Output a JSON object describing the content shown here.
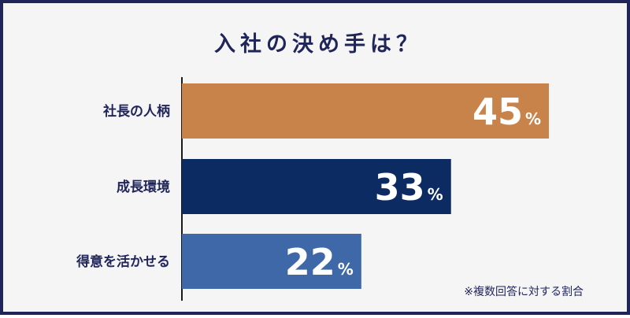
{
  "chart_data": {
    "type": "bar",
    "orientation": "horizontal",
    "title": "入社の決め手は？",
    "categories": [
      "社長の人柄",
      "成長環境",
      "得意を活かせる"
    ],
    "values": [
      45,
      33,
      22
    ],
    "unit": "%",
    "colors": [
      "#c8834a",
      "#0d2b63",
      "#3e68a8"
    ],
    "xlim": [
      0,
      100
    ],
    "grid": false,
    "legend": "none",
    "note": "※複数回答に対する割合"
  }
}
